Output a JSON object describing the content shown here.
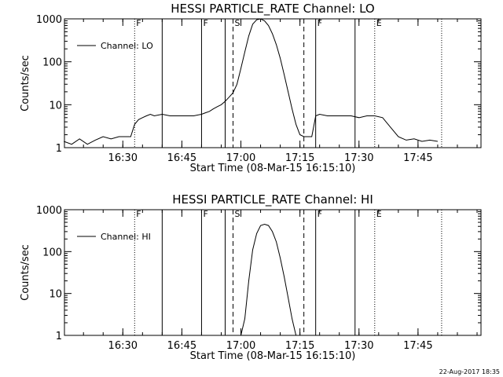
{
  "footer": {
    "timestamp": "22-Aug-2017 18:35"
  },
  "chart_data": [
    {
      "type": "line",
      "title": "HESSI PARTICLE_RATE Channel: LO",
      "xlabel": "Start Time (08-Mar-15 16:15:10)",
      "ylabel": "Counts/sec",
      "y_scale": "log",
      "xlim": [
        "16:15:10",
        "18:01:00"
      ],
      "ylim": [
        1,
        1000
      ],
      "x_ticks": [
        "16:30",
        "16:45",
        "17:00",
        "17:15",
        "17:30",
        "17:45"
      ],
      "y_ticks": [
        "1",
        "10",
        "100",
        "1000"
      ],
      "legend": {
        "entries": [
          "Channel: LO"
        ],
        "position": "top-left"
      },
      "grid": false,
      "markers": [
        {
          "time": "16:33",
          "style": "dotted",
          "label": "F"
        },
        {
          "time": "16:40",
          "style": "solid",
          "label": ""
        },
        {
          "time": "16:50",
          "style": "solid",
          "label": "F"
        },
        {
          "time": "16:56",
          "style": "solid",
          "label": ""
        },
        {
          "time": "16:58",
          "style": "dashed",
          "label": "S"
        },
        {
          "time": "17:16",
          "style": "dashed",
          "label": ""
        },
        {
          "time": "17:19",
          "style": "solid",
          "label": "F"
        },
        {
          "time": "17:29",
          "style": "solid",
          "label": ""
        },
        {
          "time": "17:34",
          "style": "dotted",
          "label": "E"
        },
        {
          "time": "17:51",
          "style": "dotted",
          "label": ""
        }
      ],
      "series": [
        {
          "name": "Channel: LO",
          "x": [
            "16:15",
            "16:17",
            "16:19",
            "16:21",
            "16:23",
            "16:25",
            "16:27",
            "16:29",
            "16:31",
            "16:32",
            "16:33",
            "16:34",
            "16:35",
            "16:36",
            "16:37",
            "16:38",
            "16:40",
            "16:42",
            "16:44",
            "16:46",
            "16:48",
            "16:50",
            "16:51",
            "16:52",
            "16:53",
            "16:54",
            "16:55",
            "16:56",
            "16:57",
            "16:58",
            "16:59",
            "17:00",
            "17:01",
            "17:02",
            "17:03",
            "17:04",
            "17:05",
            "17:06",
            "17:07",
            "17:08",
            "17:09",
            "17:10",
            "17:11",
            "17:12",
            "17:13",
            "17:14",
            "17:15",
            "17:16",
            "17:17",
            "17:18",
            "17:19",
            "17:20",
            "17:22",
            "17:24",
            "17:26",
            "17:28",
            "17:30",
            "17:32",
            "17:34",
            "17:36",
            "17:38",
            "17:40",
            "17:42",
            "17:44",
            "17:46",
            "17:48",
            "17:50"
          ],
          "y": [
            1.4,
            1.2,
            1.6,
            1.2,
            1.5,
            1.8,
            1.6,
            1.8,
            1.8,
            1.8,
            3.5,
            4.5,
            5.0,
            5.5,
            6.0,
            5.5,
            6.0,
            5.5,
            5.5,
            5.5,
            5.5,
            6.0,
            6.5,
            7.0,
            8.0,
            9.0,
            10,
            12,
            15,
            19,
            30,
            70,
            170,
            400,
            750,
            950,
            1000,
            900,
            700,
            450,
            250,
            120,
            50,
            20,
            8,
            3.5,
            2.0,
            1.8,
            1.8,
            1.8,
            5.5,
            6.0,
            5.5,
            5.5,
            5.5,
            5.5,
            5.0,
            5.5,
            5.5,
            5.0,
            3.0,
            1.8,
            1.5,
            1.6,
            1.4,
            1.5,
            1.4
          ]
        }
      ]
    },
    {
      "type": "line",
      "title": "HESSI PARTICLE_RATE Channel: HI",
      "xlabel": "Start Time (08-Mar-15 16:15:10)",
      "ylabel": "Counts/sec",
      "y_scale": "log",
      "xlim": [
        "16:15:10",
        "18:01:00"
      ],
      "ylim": [
        1,
        1000
      ],
      "x_ticks": [
        "16:30",
        "16:45",
        "17:00",
        "17:15",
        "17:30",
        "17:45"
      ],
      "y_ticks": [
        "1",
        "10",
        "100",
        "1000"
      ],
      "legend": {
        "entries": [
          "Channel: HI"
        ],
        "position": "top-left"
      },
      "grid": false,
      "markers": [
        {
          "time": "16:33",
          "style": "dotted",
          "label": "F"
        },
        {
          "time": "16:40",
          "style": "solid",
          "label": ""
        },
        {
          "time": "16:50",
          "style": "solid",
          "label": "F"
        },
        {
          "time": "16:56",
          "style": "solid",
          "label": ""
        },
        {
          "time": "16:58",
          "style": "dashed",
          "label": "S"
        },
        {
          "time": "17:16",
          "style": "dashed",
          "label": ""
        },
        {
          "time": "17:19",
          "style": "solid",
          "label": "F"
        },
        {
          "time": "17:29",
          "style": "solid",
          "label": ""
        },
        {
          "time": "17:34",
          "style": "dotted",
          "label": "E"
        },
        {
          "time": "17:51",
          "style": "dotted",
          "label": ""
        }
      ],
      "series": [
        {
          "name": "Channel: HI",
          "x": [
            "17:00",
            "17:01",
            "17:02",
            "17:03",
            "17:04",
            "17:05",
            "17:06",
            "17:07",
            "17:08",
            "17:09",
            "17:10",
            "17:11",
            "17:12",
            "17:13",
            "17:14"
          ],
          "y": [
            1.0,
            2.5,
            20,
            110,
            270,
            420,
            450,
            420,
            300,
            170,
            70,
            25,
            8,
            2.5,
            1.0
          ]
        }
      ]
    }
  ]
}
